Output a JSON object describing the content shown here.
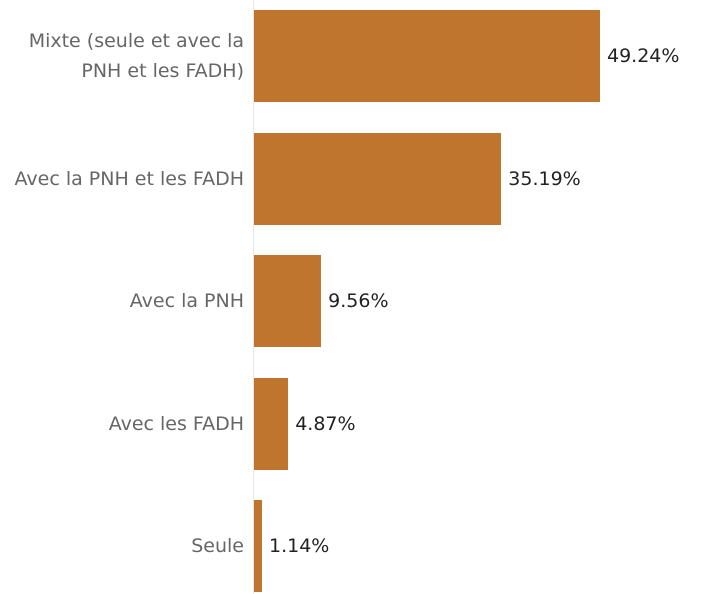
{
  "chart_data": {
    "type": "bar",
    "orientation": "horizontal",
    "categories": [
      "Mixte (seule et avec la PNH et les FADH)",
      "Avec la PNH et les FADH",
      "Avec la PNH",
      "Avec les FADH",
      "Seule"
    ],
    "values": [
      49.24,
      35.19,
      9.56,
      4.87,
      1.14
    ],
    "value_labels": [
      "49.24%",
      "35.19%",
      "9.56%",
      "4.87%",
      "1.14%"
    ],
    "color": "#c0752f"
  }
}
